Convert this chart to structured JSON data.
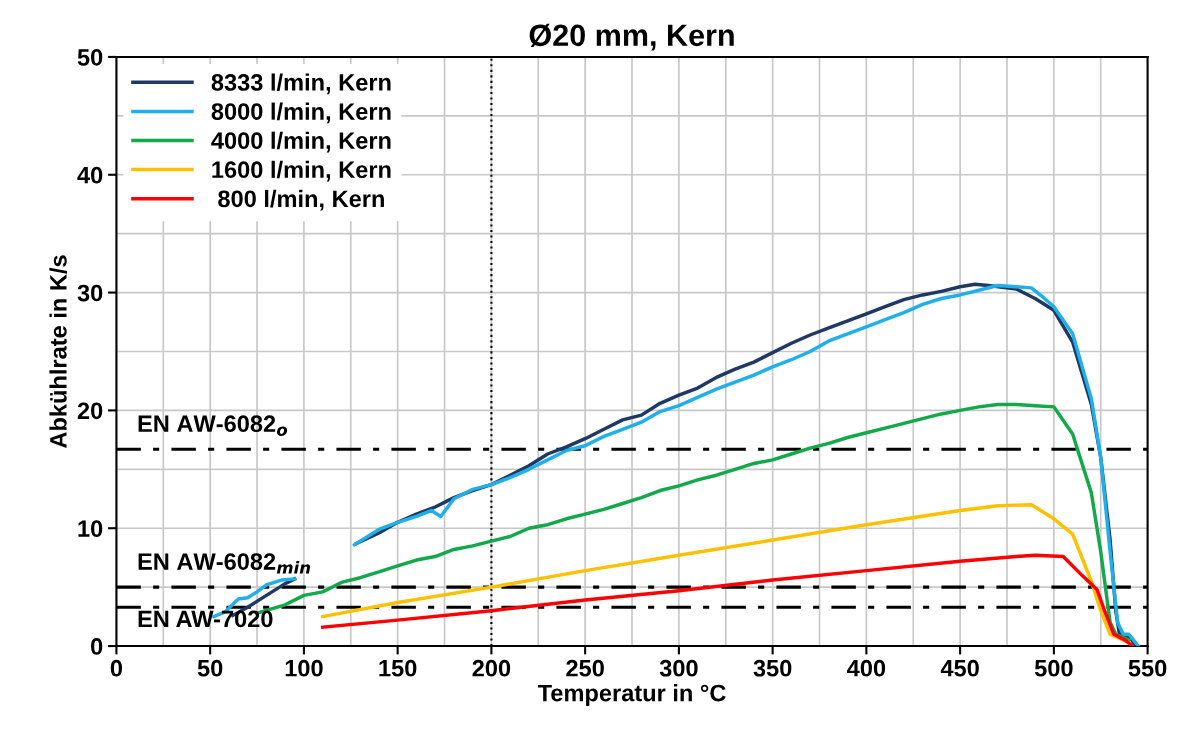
{
  "chart_data": {
    "type": "line",
    "title": "Ø20 mm, Kern",
    "xlabel": "Temperatur in °C",
    "ylabel": "Abkühlrate in K/s",
    "xlim": [
      0,
      550
    ],
    "xticks": [
      0,
      50,
      100,
      150,
      200,
      250,
      300,
      350,
      400,
      450,
      500,
      550
    ],
    "ylim": [
      0,
      50
    ],
    "yticks": [
      0,
      10,
      20,
      30,
      40,
      50
    ],
    "grid": true,
    "legend": "top left",
    "marker": "none",
    "line_style": "solid",
    "series": [
      {
        "name": "8333 l/min, Kern",
        "color": "#1f3864",
        "x": [
          62,
          70,
          80,
          90,
          95,
          110,
          128,
          140,
          150,
          160,
          170,
          180,
          190,
          200,
          210,
          220,
          230,
          240,
          250,
          260,
          270,
          280,
          290,
          300,
          310,
          320,
          330,
          340,
          350,
          360,
          370,
          380,
          390,
          400,
          410,
          420,
          430,
          440,
          450,
          458,
          465,
          480,
          490,
          500,
          510,
          520,
          525,
          530,
          533,
          535,
          540,
          543
        ],
        "values": [
          2.6,
          3.3,
          4.3,
          5.3,
          5.7,
          null,
          8.7,
          9.6,
          10.5,
          11.2,
          11.8,
          12.6,
          13.2,
          13.7,
          14.5,
          15.3,
          16.3,
          16.9,
          17.6,
          18.4,
          19.2,
          19.6,
          20.6,
          21.3,
          21.9,
          22.8,
          23.5,
          24.1,
          24.9,
          25.7,
          26.4,
          27.0,
          27.6,
          28.2,
          28.8,
          29.4,
          29.8,
          30.1,
          30.5,
          30.7,
          30.6,
          30.3,
          29.5,
          28.5,
          25.8,
          20.5,
          16,
          9,
          3,
          1,
          0.8,
          0.2
        ]
      },
      {
        "name": "8000 l/min, Kern",
        "color": "#1fb0ec",
        "x": [
          52,
          58,
          65,
          70,
          75,
          80,
          88,
          95,
          110,
          127,
          140,
          150,
          160,
          168,
          173,
          180,
          190,
          200,
          210,
          220,
          230,
          240,
          250,
          260,
          270,
          280,
          290,
          300,
          310,
          320,
          330,
          340,
          350,
          360,
          370,
          380,
          390,
          400,
          410,
          420,
          430,
          440,
          450,
          460,
          470,
          480,
          488,
          495,
          500,
          510,
          520,
          525,
          530,
          534,
          537,
          540,
          545
        ],
        "values": [
          2.5,
          2.9,
          4.0,
          4.1,
          4.6,
          5.2,
          5.6,
          5.7,
          null,
          8.6,
          9.9,
          10.5,
          11.0,
          11.5,
          11.0,
          12.5,
          13.3,
          13.7,
          14.3,
          15.0,
          15.8,
          16.6,
          17.0,
          17.8,
          18.4,
          19.0,
          19.9,
          20.4,
          21.1,
          21.8,
          22.4,
          23.0,
          23.7,
          24.3,
          25.0,
          25.9,
          26.5,
          27.1,
          27.7,
          28.3,
          29.0,
          29.5,
          29.8,
          30.2,
          30.6,
          30.5,
          30.4,
          29.5,
          28.8,
          26.5,
          21,
          16,
          8,
          2,
          1,
          1,
          0
        ]
      },
      {
        "name": "4000 l/min, Kern",
        "color": "#13a84a",
        "x": [
          75,
          90,
          100,
          110,
          120,
          130,
          140,
          150,
          160,
          170,
          180,
          190,
          200,
          210,
          220,
          230,
          240,
          250,
          260,
          270,
          280,
          290,
          300,
          310,
          320,
          330,
          340,
          350,
          360,
          370,
          380,
          390,
          400,
          410,
          420,
          430,
          440,
          450,
          460,
          470,
          480,
          490,
          500,
          510,
          520,
          525,
          530,
          533,
          540
        ],
        "values": [
          2.8,
          3.5,
          4.3,
          4.6,
          5.4,
          5.8,
          6.3,
          6.8,
          7.3,
          7.6,
          8.2,
          8.5,
          8.9,
          9.3,
          10.0,
          10.3,
          10.8,
          11.2,
          11.6,
          12.1,
          12.6,
          13.2,
          13.6,
          14.1,
          14.5,
          15.0,
          15.5,
          15.8,
          16.3,
          16.8,
          17.2,
          17.7,
          18.1,
          18.5,
          18.9,
          19.3,
          19.7,
          20.0,
          20.3,
          20.5,
          20.5,
          20.4,
          20.3,
          18.0,
          13,
          8,
          2,
          1,
          0.5
        ]
      },
      {
        "name": "1600 l/min, Kern",
        "color": "#ffc000",
        "x": [
          110,
          150,
          200,
          250,
          300,
          350,
          400,
          450,
          470,
          488,
          500,
          510,
          520,
          525,
          530,
          540
        ],
        "values": [
          2.5,
          3.7,
          5.0,
          6.4,
          7.7,
          9.0,
          10.3,
          11.5,
          11.9,
          12.0,
          10.8,
          9.5,
          5.5,
          3,
          1,
          0.3
        ]
      },
      {
        "name": " 800 l/min, Kern",
        "color": "#ff0000",
        "x": [
          110,
          150,
          200,
          250,
          300,
          350,
          400,
          450,
          480,
          490,
          505,
          515,
          523,
          527,
          532,
          538,
          542
        ],
        "values": [
          1.6,
          2.2,
          3.0,
          3.9,
          4.7,
          5.6,
          6.4,
          7.2,
          7.6,
          7.7,
          7.6,
          6.0,
          4.8,
          3,
          1,
          0.5,
          0
        ]
      }
    ],
    "ref_lines": [
      {
        "axis": "y",
        "value": 16.7,
        "label": "EN AW-6082$_{o}$",
        "color": "#000000",
        "line_style": "dashdot"
      },
      {
        "axis": "y",
        "value": 5.0,
        "label": "EN AW-6082$_{min}$",
        "color": "#000000",
        "line_style": "dashdot"
      },
      {
        "axis": "y",
        "value": 3.3,
        "label": "EN AW-7020",
        "color": "#000000",
        "line_style": "dashdot"
      },
      {
        "axis": "x",
        "value": 200,
        "label": null,
        "color": "#000000",
        "line_style": "dotted"
      }
    ]
  }
}
